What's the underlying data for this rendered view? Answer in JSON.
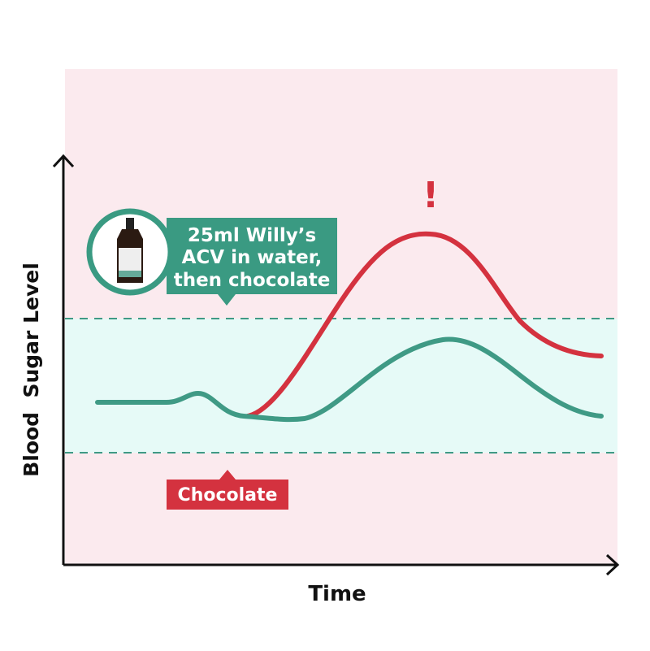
{
  "callout": {
    "lines": [
      "25ml Willy’s",
      "ACV in water,",
      "then chocolate"
    ]
  },
  "tag": {
    "label": "Chocolate"
  },
  "alert": {
    "label": "!"
  },
  "axes": {
    "y_label": "Blood  Sugar Level",
    "x_label": "Time"
  }
}
